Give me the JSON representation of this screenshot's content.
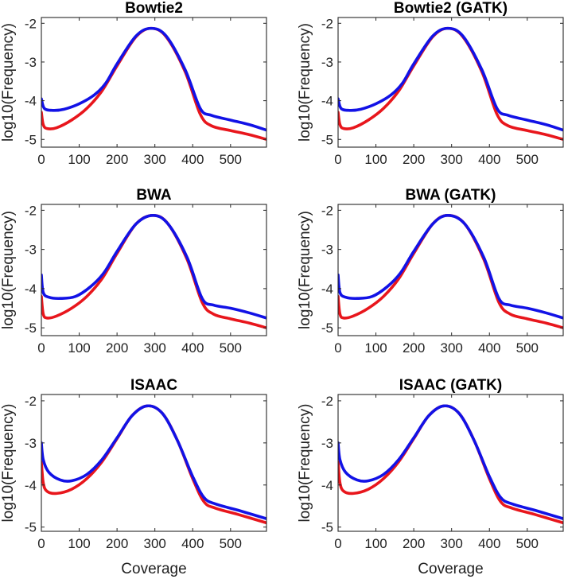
{
  "colors": {
    "series_a": "#e8161c",
    "series_b": "#1212e6",
    "axes": "#262626"
  },
  "chart_data": [
    {
      "type": "line",
      "title": "Bowtie2",
      "xlabel": "",
      "ylabel": "log10(Frequency)",
      "xlim": [
        0,
        595
      ],
      "ylim": [
        -5.2,
        -1.85
      ],
      "xticks": [
        0,
        100,
        200,
        300,
        400,
        500
      ],
      "yticks": [
        -2,
        -3,
        -4,
        -5
      ],
      "series": [
        {
          "name": "red",
          "color": "#e8161c",
          "points": [
            [
              0,
              -4.3
            ],
            [
              5,
              -4.62
            ],
            [
              15,
              -4.72
            ],
            [
              40,
              -4.7
            ],
            [
              80,
              -4.5
            ],
            [
              120,
              -4.2
            ],
            [
              160,
              -3.75
            ],
            [
              200,
              -3.1
            ],
            [
              250,
              -2.35
            ],
            [
              290,
              -2.13
            ],
            [
              330,
              -2.35
            ],
            [
              380,
              -3.25
            ],
            [
              420,
              -4.35
            ],
            [
              450,
              -4.65
            ],
            [
              500,
              -4.77
            ],
            [
              550,
              -4.88
            ],
            [
              595,
              -5.0
            ]
          ]
        },
        {
          "name": "blue",
          "color": "#1212e6",
          "points": [
            [
              0,
              -3.95
            ],
            [
              8,
              -4.2
            ],
            [
              30,
              -4.25
            ],
            [
              60,
              -4.22
            ],
            [
              100,
              -4.08
            ],
            [
              140,
              -3.85
            ],
            [
              170,
              -3.55
            ],
            [
              200,
              -3.05
            ],
            [
              250,
              -2.33
            ],
            [
              290,
              -2.13
            ],
            [
              330,
              -2.33
            ],
            [
              380,
              -3.2
            ],
            [
              420,
              -4.2
            ],
            [
              450,
              -4.38
            ],
            [
              500,
              -4.5
            ],
            [
              550,
              -4.62
            ],
            [
              595,
              -4.76
            ]
          ]
        }
      ]
    },
    {
      "type": "line",
      "title": "Bowtie2 (GATK)",
      "xlabel": "",
      "ylabel": "log10(Frequency)",
      "xlim": [
        0,
        595
      ],
      "ylim": [
        -5.2,
        -1.85
      ],
      "xticks": [
        0,
        100,
        200,
        300,
        400,
        500
      ],
      "yticks": [
        -2,
        -3,
        -4,
        -5
      ],
      "series": [
        {
          "name": "red",
          "color": "#e8161c",
          "points": [
            [
              0,
              -4.3
            ],
            [
              5,
              -4.62
            ],
            [
              15,
              -4.72
            ],
            [
              40,
              -4.7
            ],
            [
              80,
              -4.5
            ],
            [
              120,
              -4.2
            ],
            [
              160,
              -3.75
            ],
            [
              200,
              -3.1
            ],
            [
              250,
              -2.35
            ],
            [
              290,
              -2.13
            ],
            [
              330,
              -2.35
            ],
            [
              380,
              -3.25
            ],
            [
              420,
              -4.35
            ],
            [
              450,
              -4.65
            ],
            [
              500,
              -4.77
            ],
            [
              550,
              -4.88
            ],
            [
              595,
              -5.0
            ]
          ]
        },
        {
          "name": "blue",
          "color": "#1212e6",
          "points": [
            [
              0,
              -3.95
            ],
            [
              8,
              -4.2
            ],
            [
              30,
              -4.25
            ],
            [
              60,
              -4.22
            ],
            [
              100,
              -4.08
            ],
            [
              140,
              -3.85
            ],
            [
              170,
              -3.55
            ],
            [
              200,
              -3.05
            ],
            [
              250,
              -2.33
            ],
            [
              290,
              -2.13
            ],
            [
              330,
              -2.33
            ],
            [
              380,
              -3.2
            ],
            [
              420,
              -4.2
            ],
            [
              450,
              -4.38
            ],
            [
              500,
              -4.5
            ],
            [
              550,
              -4.62
            ],
            [
              595,
              -4.76
            ]
          ]
        }
      ]
    },
    {
      "type": "line",
      "title": "BWA",
      "xlabel": "",
      "ylabel": "log10(Frequency)",
      "xlim": [
        0,
        595
      ],
      "ylim": [
        -5.2,
        -1.85
      ],
      "xticks": [
        0,
        100,
        200,
        300,
        400,
        500
      ],
      "yticks": [
        -2,
        -3,
        -4,
        -5
      ],
      "series": [
        {
          "name": "red",
          "color": "#e8161c",
          "points": [
            [
              0,
              -4.2
            ],
            [
              5,
              -4.65
            ],
            [
              15,
              -4.75
            ],
            [
              40,
              -4.7
            ],
            [
              80,
              -4.5
            ],
            [
              120,
              -4.2
            ],
            [
              160,
              -3.75
            ],
            [
              200,
              -3.1
            ],
            [
              250,
              -2.35
            ],
            [
              295,
              -2.13
            ],
            [
              335,
              -2.35
            ],
            [
              385,
              -3.25
            ],
            [
              425,
              -4.35
            ],
            [
              455,
              -4.65
            ],
            [
              500,
              -4.77
            ],
            [
              550,
              -4.88
            ],
            [
              595,
              -5.0
            ]
          ]
        },
        {
          "name": "blue",
          "color": "#1212e6",
          "points": [
            [
              0,
              -3.65
            ],
            [
              5,
              -4.1
            ],
            [
              20,
              -4.22
            ],
            [
              50,
              -4.25
            ],
            [
              90,
              -4.2
            ],
            [
              130,
              -3.95
            ],
            [
              165,
              -3.6
            ],
            [
              200,
              -3.05
            ],
            [
              250,
              -2.35
            ],
            [
              295,
              -2.13
            ],
            [
              335,
              -2.35
            ],
            [
              385,
              -3.2
            ],
            [
              425,
              -4.25
            ],
            [
              455,
              -4.42
            ],
            [
              500,
              -4.5
            ],
            [
              550,
              -4.62
            ],
            [
              595,
              -4.75
            ]
          ]
        }
      ]
    },
    {
      "type": "line",
      "title": "BWA (GATK)",
      "xlabel": "",
      "ylabel": "log10(Frequency)",
      "xlim": [
        0,
        595
      ],
      "ylim": [
        -5.2,
        -1.85
      ],
      "xticks": [
        0,
        100,
        200,
        300,
        400,
        500
      ],
      "yticks": [
        -2,
        -3,
        -4,
        -5
      ],
      "series": [
        {
          "name": "red",
          "color": "#e8161c",
          "points": [
            [
              0,
              -4.2
            ],
            [
              5,
              -4.65
            ],
            [
              15,
              -4.75
            ],
            [
              40,
              -4.7
            ],
            [
              80,
              -4.5
            ],
            [
              120,
              -4.2
            ],
            [
              160,
              -3.75
            ],
            [
              200,
              -3.1
            ],
            [
              250,
              -2.35
            ],
            [
              290,
              -2.13
            ],
            [
              335,
              -2.35
            ],
            [
              385,
              -3.25
            ],
            [
              425,
              -4.35
            ],
            [
              455,
              -4.65
            ],
            [
              500,
              -4.77
            ],
            [
              550,
              -4.88
            ],
            [
              595,
              -5.0
            ]
          ]
        },
        {
          "name": "blue",
          "color": "#1212e6",
          "points": [
            [
              0,
              -3.65
            ],
            [
              5,
              -4.1
            ],
            [
              20,
              -4.22
            ],
            [
              50,
              -4.25
            ],
            [
              90,
              -4.2
            ],
            [
              130,
              -3.95
            ],
            [
              165,
              -3.6
            ],
            [
              200,
              -3.05
            ],
            [
              250,
              -2.35
            ],
            [
              290,
              -2.13
            ],
            [
              335,
              -2.35
            ],
            [
              385,
              -3.2
            ],
            [
              425,
              -4.25
            ],
            [
              455,
              -4.42
            ],
            [
              500,
              -4.5
            ],
            [
              550,
              -4.62
            ],
            [
              595,
              -4.75
            ]
          ]
        }
      ]
    },
    {
      "type": "line",
      "title": "ISAAC",
      "xlabel": "Coverage",
      "ylabel": "log10(Frequency)",
      "xlim": [
        0,
        595
      ],
      "ylim": [
        -5.1,
        -1.85
      ],
      "xticks": [
        0,
        100,
        200,
        300,
        400,
        500
      ],
      "yticks": [
        -2,
        -3,
        -4,
        -5
      ],
      "series": [
        {
          "name": "red",
          "color": "#e8161c",
          "points": [
            [
              0,
              -3.45
            ],
            [
              5,
              -3.95
            ],
            [
              15,
              -4.15
            ],
            [
              40,
              -4.2
            ],
            [
              80,
              -4.1
            ],
            [
              120,
              -3.85
            ],
            [
              160,
              -3.45
            ],
            [
              200,
              -2.9
            ],
            [
              240,
              -2.35
            ],
            [
              280,
              -2.12
            ],
            [
              320,
              -2.3
            ],
            [
              360,
              -2.95
            ],
            [
              400,
              -3.85
            ],
            [
              430,
              -4.4
            ],
            [
              460,
              -4.55
            ],
            [
              520,
              -4.7
            ],
            [
              595,
              -4.9
            ]
          ]
        },
        {
          "name": "blue",
          "color": "#1212e6",
          "points": [
            [
              0,
              -3.0
            ],
            [
              5,
              -3.4
            ],
            [
              20,
              -3.7
            ],
            [
              50,
              -3.88
            ],
            [
              80,
              -3.9
            ],
            [
              120,
              -3.75
            ],
            [
              160,
              -3.4
            ],
            [
              200,
              -2.88
            ],
            [
              240,
              -2.35
            ],
            [
              280,
              -2.12
            ],
            [
              320,
              -2.3
            ],
            [
              360,
              -2.95
            ],
            [
              400,
              -3.8
            ],
            [
              430,
              -4.3
            ],
            [
              460,
              -4.45
            ],
            [
              520,
              -4.6
            ],
            [
              595,
              -4.8
            ]
          ]
        }
      ]
    },
    {
      "type": "line",
      "title": "ISAAC (GATK)",
      "xlabel": "Coverage",
      "ylabel": "log10(Frequency)",
      "xlim": [
        0,
        595
      ],
      "ylim": [
        -5.1,
        -1.85
      ],
      "xticks": [
        0,
        100,
        200,
        300,
        400,
        500
      ],
      "yticks": [
        -2,
        -3,
        -4,
        -5
      ],
      "series": [
        {
          "name": "red",
          "color": "#e8161c",
          "points": [
            [
              0,
              -3.45
            ],
            [
              5,
              -3.95
            ],
            [
              15,
              -4.15
            ],
            [
              40,
              -4.2
            ],
            [
              80,
              -4.1
            ],
            [
              120,
              -3.85
            ],
            [
              160,
              -3.45
            ],
            [
              200,
              -2.9
            ],
            [
              240,
              -2.35
            ],
            [
              280,
              -2.12
            ],
            [
              320,
              -2.3
            ],
            [
              360,
              -2.95
            ],
            [
              400,
              -3.85
            ],
            [
              430,
              -4.4
            ],
            [
              460,
              -4.55
            ],
            [
              520,
              -4.7
            ],
            [
              595,
              -4.9
            ]
          ]
        },
        {
          "name": "blue",
          "color": "#1212e6",
          "points": [
            [
              0,
              -3.0
            ],
            [
              5,
              -3.4
            ],
            [
              20,
              -3.7
            ],
            [
              50,
              -3.88
            ],
            [
              80,
              -3.9
            ],
            [
              120,
              -3.75
            ],
            [
              160,
              -3.4
            ],
            [
              200,
              -2.88
            ],
            [
              240,
              -2.35
            ],
            [
              280,
              -2.12
            ],
            [
              320,
              -2.3
            ],
            [
              360,
              -2.95
            ],
            [
              400,
              -3.8
            ],
            [
              430,
              -4.3
            ],
            [
              460,
              -4.45
            ],
            [
              520,
              -4.6
            ],
            [
              595,
              -4.8
            ]
          ]
        }
      ]
    }
  ]
}
